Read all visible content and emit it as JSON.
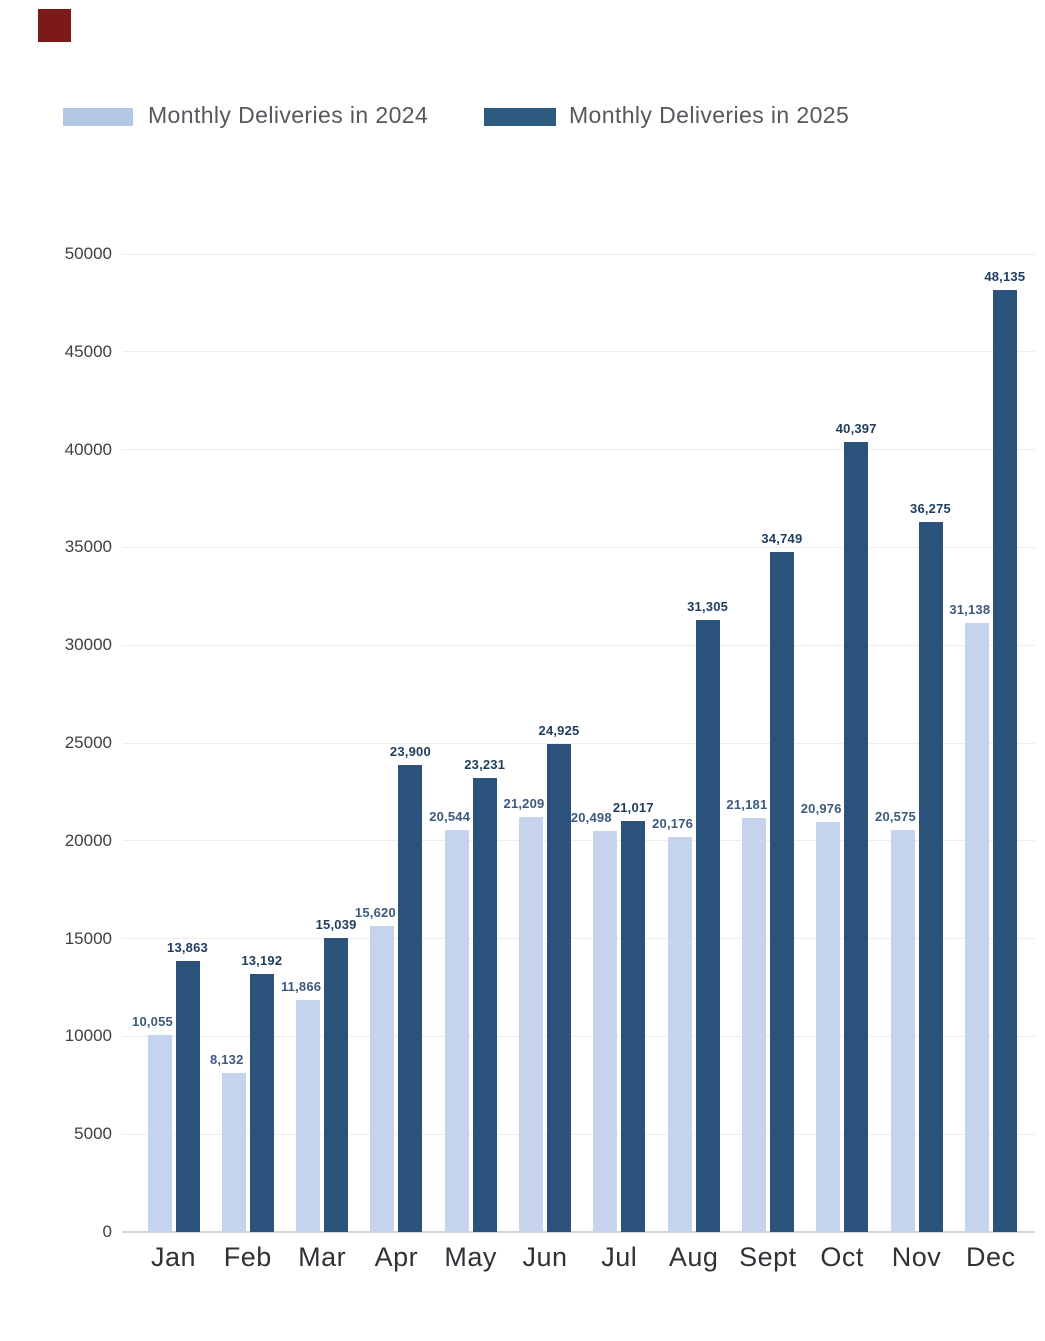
{
  "page": {
    "background": "#ffffff"
  },
  "marker": {
    "color": "#7c1a1a"
  },
  "legend": {
    "items": [
      {
        "label": "Monthly Deliveries in 2024",
        "color": "#b2c8e5"
      },
      {
        "label": "Monthly Deliveries in 2025",
        "color": "#2e5a82"
      }
    ]
  },
  "chart_data": {
    "type": "bar",
    "title": "",
    "categories": [
      "Jan",
      "Feb",
      "Mar",
      "Apr",
      "May",
      "Jun",
      "Jul",
      "Aug",
      "Sept",
      "Oct",
      "Nov",
      "Dec"
    ],
    "series": [
      {
        "name": "Monthly Deliveries in 2024",
        "color": "#c5d3ec",
        "label_color": "#3c5a7e",
        "values": [
          10055,
          8132,
          11866,
          15620,
          20544,
          21209,
          20498,
          20176,
          21181,
          20976,
          20575,
          31138
        ],
        "value_labels": [
          "10,055",
          "8,132",
          "11,866",
          "15,620",
          "20,544",
          "21,209",
          "20,498",
          "20,176",
          "21,181",
          "20,976",
          "20,575",
          "31,138"
        ]
      },
      {
        "name": "Monthly Deliveries in 2025",
        "color": "#2a527b",
        "label_color": "#1f3d5f",
        "values": [
          13863,
          13192,
          15039,
          23900,
          23231,
          24925,
          21017,
          31305,
          34749,
          40397,
          36275,
          48135
        ],
        "value_labels": [
          "13,863",
          "13,192",
          "15,039",
          "23,900",
          "23,231",
          "24,925",
          "21,017",
          "31,305",
          "34,749",
          "40,397",
          "36,275",
          "48,135"
        ]
      }
    ],
    "ylim": [
      0,
      50000
    ],
    "ytick_interval": 5000,
    "yticks": [
      "0",
      "5000",
      "10000",
      "15000",
      "20000",
      "25000",
      "30000",
      "35000",
      "40000",
      "45000",
      "50000"
    ],
    "grid": true,
    "legend_position": "top"
  }
}
